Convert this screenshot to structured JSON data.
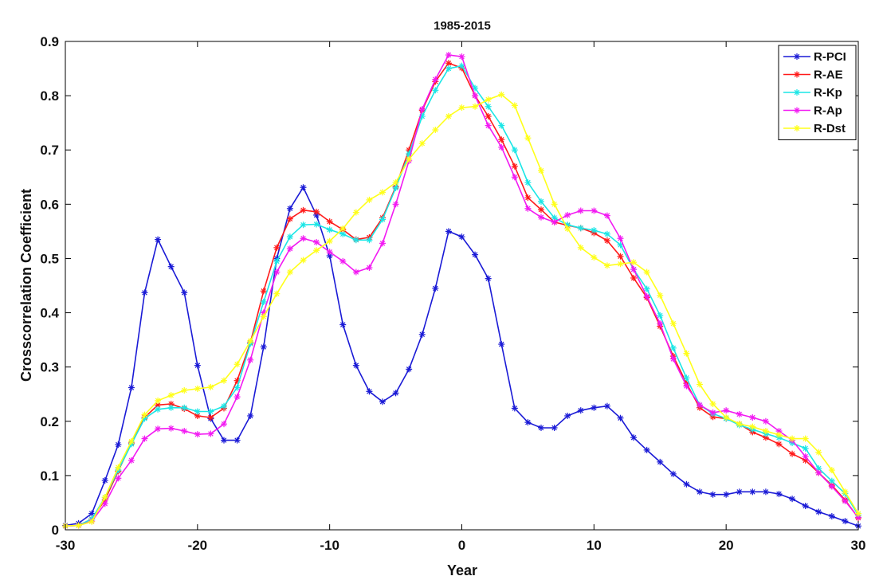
{
  "chart_data": {
    "type": "line",
    "title": "1985-2015",
    "xlabel": "Year",
    "ylabel": "Crosscorrelation Coefficient",
    "xlim": [
      -30,
      30
    ],
    "ylim": [
      0,
      0.9
    ],
    "xticks": [
      -30,
      -20,
      -10,
      0,
      10,
      20,
      30
    ],
    "yticks": [
      0,
      0.1,
      0.2,
      0.3,
      0.4,
      0.5,
      0.6,
      0.7,
      0.8,
      0.9
    ],
    "xtick_labels": [
      "-30",
      "-20",
      "-10",
      "0",
      "10",
      "20",
      "30"
    ],
    "ytick_labels": [
      "0",
      "0.1",
      "0.2",
      "0.3",
      "0.4",
      "0.5",
      "0.6",
      "0.7",
      "0.8",
      "0.9"
    ],
    "grid": false,
    "legend_position": "top-right",
    "marker": "asterisk",
    "x": [
      -30,
      -29,
      -28,
      -27,
      -26,
      -25,
      -24,
      -23,
      -22,
      -21,
      -20,
      -19,
      -18,
      -17,
      -16,
      -15,
      -14,
      -13,
      -12,
      -11,
      -10,
      -9,
      -8,
      -7,
      -6,
      -5,
      -4,
      -3,
      -2,
      -1,
      0,
      1,
      2,
      3,
      4,
      5,
      6,
      7,
      8,
      9,
      10,
      11,
      12,
      13,
      14,
      15,
      16,
      17,
      18,
      19,
      20,
      21,
      22,
      23,
      24,
      25,
      26,
      27,
      28,
      29,
      30
    ],
    "series": [
      {
        "name": "R-PCI",
        "color": "#1a1ad6",
        "values": [
          0.008,
          0.012,
          0.03,
          0.091,
          0.157,
          0.262,
          0.437,
          0.535,
          0.485,
          0.437,
          0.303,
          0.205,
          0.165,
          0.165,
          0.21,
          0.337,
          0.5,
          0.592,
          0.631,
          0.58,
          0.505,
          0.378,
          0.303,
          0.255,
          0.236,
          0.252,
          0.296,
          0.36,
          0.445,
          0.55,
          0.54,
          0.507,
          0.463,
          0.342,
          0.224,
          0.198,
          0.188,
          0.188,
          0.21,
          0.22,
          0.225,
          0.228,
          0.206,
          0.17,
          0.147,
          0.125,
          0.103,
          0.084,
          0.07,
          0.065,
          0.065,
          0.07,
          0.07,
          0.07,
          0.066,
          0.057,
          0.044,
          0.033,
          0.025,
          0.016,
          0.007
        ]
      },
      {
        "name": "R-AE",
        "color": "#ff1a1a",
        "values": [
          0.007,
          0.008,
          0.02,
          0.055,
          0.108,
          0.16,
          0.207,
          0.23,
          0.232,
          0.223,
          0.21,
          0.207,
          0.224,
          0.275,
          0.345,
          0.44,
          0.52,
          0.573,
          0.589,
          0.586,
          0.568,
          0.553,
          0.535,
          0.539,
          0.575,
          0.632,
          0.7,
          0.773,
          0.826,
          0.86,
          0.851,
          0.8,
          0.762,
          0.719,
          0.67,
          0.612,
          0.59,
          0.567,
          0.561,
          0.556,
          0.547,
          0.533,
          0.504,
          0.464,
          0.428,
          0.375,
          0.32,
          0.27,
          0.225,
          0.208,
          0.205,
          0.195,
          0.18,
          0.17,
          0.158,
          0.14,
          0.128,
          0.105,
          0.082,
          0.055,
          0.022
        ]
      },
      {
        "name": "R-Kp",
        "color": "#1ae6e6",
        "values": [
          0.007,
          0.008,
          0.02,
          0.06,
          0.11,
          0.158,
          0.205,
          0.222,
          0.225,
          0.225,
          0.218,
          0.218,
          0.228,
          0.262,
          0.343,
          0.42,
          0.495,
          0.54,
          0.562,
          0.563,
          0.553,
          0.545,
          0.534,
          0.534,
          0.572,
          0.63,
          0.693,
          0.762,
          0.81,
          0.85,
          0.855,
          0.814,
          0.78,
          0.745,
          0.7,
          0.64,
          0.605,
          0.575,
          0.562,
          0.556,
          0.552,
          0.545,
          0.525,
          0.48,
          0.444,
          0.395,
          0.335,
          0.28,
          0.23,
          0.214,
          0.205,
          0.193,
          0.185,
          0.177,
          0.17,
          0.16,
          0.15,
          0.113,
          0.09,
          0.067,
          0.027
        ]
      },
      {
        "name": "R-Ap",
        "color": "#f21af2",
        "values": [
          0.007,
          0.008,
          0.016,
          0.048,
          0.095,
          0.128,
          0.168,
          0.186,
          0.187,
          0.182,
          0.176,
          0.177,
          0.195,
          0.245,
          0.313,
          0.4,
          0.475,
          0.518,
          0.537,
          0.53,
          0.512,
          0.495,
          0.475,
          0.483,
          0.528,
          0.6,
          0.68,
          0.775,
          0.83,
          0.875,
          0.872,
          0.8,
          0.745,
          0.705,
          0.65,
          0.592,
          0.576,
          0.567,
          0.58,
          0.588,
          0.588,
          0.579,
          0.537,
          0.48,
          0.43,
          0.38,
          0.315,
          0.265,
          0.23,
          0.216,
          0.22,
          0.213,
          0.207,
          0.2,
          0.182,
          0.165,
          0.135,
          0.105,
          0.08,
          0.053,
          0.023
        ]
      },
      {
        "name": "R-Dst",
        "color": "#ffff1a",
        "values": [
          0.007,
          0.008,
          0.015,
          0.06,
          0.115,
          0.163,
          0.212,
          0.238,
          0.248,
          0.257,
          0.26,
          0.263,
          0.275,
          0.305,
          0.348,
          0.393,
          0.435,
          0.475,
          0.497,
          0.515,
          0.532,
          0.555,
          0.585,
          0.608,
          0.622,
          0.64,
          0.683,
          0.712,
          0.737,
          0.762,
          0.778,
          0.78,
          0.793,
          0.802,
          0.782,
          0.722,
          0.662,
          0.6,
          0.555,
          0.52,
          0.502,
          0.487,
          0.49,
          0.493,
          0.475,
          0.432,
          0.38,
          0.325,
          0.268,
          0.232,
          0.207,
          0.195,
          0.19,
          0.182,
          0.175,
          0.168,
          0.168,
          0.143,
          0.11,
          0.07,
          0.03
        ]
      }
    ]
  }
}
